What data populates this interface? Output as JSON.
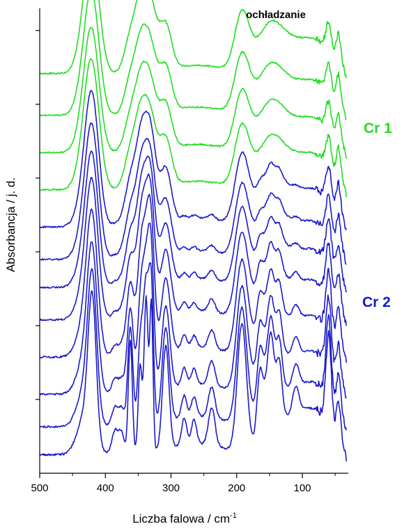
{
  "chart_data": {
    "type": "line",
    "annotation": "ochładzanie",
    "xlabel": "Liczba falowa / cm",
    "xlabel_sup": "-1",
    "ylabel": "Absorbancja / j. d.",
    "xlim": [
      500,
      30
    ],
    "x_ticks": [
      500,
      400,
      300,
      200,
      100
    ],
    "x_tick_labels": [
      "500",
      "400",
      "300",
      "200",
      "100"
    ],
    "y_ticks_unlabeled": 6,
    "legend": "right",
    "groups": [
      {
        "name": "Cr 1",
        "color": "#22dd22",
        "count": 4
      },
      {
        "name": "Cr 2",
        "color": "#1a1acc",
        "count": 8
      }
    ],
    "peaks_cm1": [
      420,
      385,
      362,
      347,
      338,
      330,
      308,
      275,
      238,
      192,
      165,
      150,
      135,
      110,
      60,
      45
    ],
    "series": [
      {
        "group": "Cr 1",
        "baseline": 0.86,
        "peak_intensity": 0.22,
        "sharpness": 0.0
      },
      {
        "group": "Cr 1",
        "baseline": 0.77,
        "peak_intensity": 0.22,
        "sharpness": 0.0
      },
      {
        "group": "Cr 1",
        "baseline": 0.69,
        "peak_intensity": 0.22,
        "sharpness": 0.0
      },
      {
        "group": "Cr 1",
        "baseline": 0.61,
        "peak_intensity": 0.23,
        "sharpness": 0.0
      },
      {
        "group": "Cr 2",
        "baseline": 0.53,
        "peak_intensity": 0.24,
        "sharpness": 0.15
      },
      {
        "group": "Cr 2",
        "baseline": 0.46,
        "peak_intensity": 0.24,
        "sharpness": 0.2
      },
      {
        "group": "Cr 2",
        "baseline": 0.4,
        "peak_intensity": 0.24,
        "sharpness": 0.3
      },
      {
        "group": "Cr 2",
        "baseline": 0.33,
        "peak_intensity": 0.25,
        "sharpness": 0.4
      },
      {
        "group": "Cr 2",
        "baseline": 0.25,
        "peak_intensity": 0.26,
        "sharpness": 0.55
      },
      {
        "group": "Cr 2",
        "baseline": 0.17,
        "peak_intensity": 0.27,
        "sharpness": 0.7
      },
      {
        "group": "Cr 2",
        "baseline": 0.1,
        "peak_intensity": 0.28,
        "sharpness": 0.85
      },
      {
        "group": "Cr 2",
        "baseline": 0.04,
        "peak_intensity": 0.29,
        "sharpness": 1.0
      }
    ]
  }
}
